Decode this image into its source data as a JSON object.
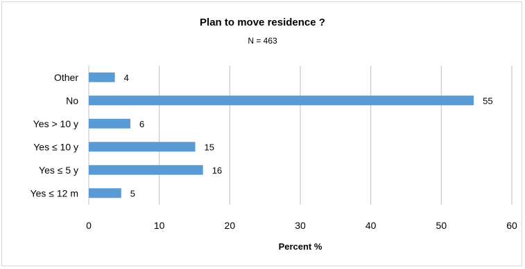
{
  "chart_data": {
    "type": "bar",
    "orientation": "horizontal",
    "title": "Plan to move residence ?",
    "subtitle": "N = 463",
    "xlabel": "Percent  %",
    "ylabel": "",
    "categories": [
      "Other",
      "No",
      "Yes > 10 y",
      "Yes ≤ 10 y",
      "Yes ≤ 5 y",
      "Yes ≤ 12 m"
    ],
    "values": [
      3.7,
      54.6,
      5.9,
      15.1,
      16.2,
      4.6
    ],
    "data_labels": [
      "4",
      "55",
      "6",
      "15",
      "16",
      "5"
    ],
    "xlim": [
      0,
      60
    ],
    "xticks": [
      "0",
      "10",
      "20",
      "30",
      "40",
      "50",
      "60"
    ],
    "grid": "vertical",
    "legend": "none",
    "colors": {
      "bar": "#5b9bd5",
      "grid": "#bfbfbf",
      "axis": "#bfbfbf",
      "frame": "#d9d9d9"
    }
  }
}
